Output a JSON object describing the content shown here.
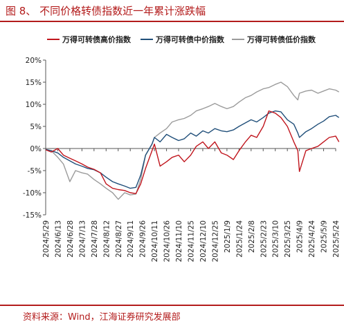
{
  "figure": {
    "title": "图 8、 不同价格转债指数近一年累计涨跌幅",
    "source": "资料来源：Wind，江海证券研究发展部"
  },
  "chart_data": {
    "type": "line",
    "title": "",
    "xlabel": "",
    "ylabel": "",
    "legend_position": "top",
    "grid": false,
    "ylim": [
      -15,
      20
    ],
    "yticks": [
      "20%",
      "15%",
      "10%",
      "5%",
      "0%",
      "-5%",
      "-10%",
      "-15%"
    ],
    "x_tick_labels": [
      "2024/5/29",
      "2024/6/13",
      "2024/6/28",
      "2024/7/13",
      "2024/7/28",
      "2024/8/12",
      "2024/8/27",
      "2024/9/11",
      "2024/9/26",
      "2024/10/11",
      "2024/10/26",
      "2024/11/10",
      "2024/11/25",
      "2024/12/10",
      "2024/12/25",
      "2025/1/9",
      "2025/1/24",
      "2025/2/8",
      "2025/2/23",
      "2025/3/10",
      "2025/3/25",
      "2025/4/9",
      "2025/4/24",
      "2025/5/9",
      "2025/5/24"
    ],
    "x": [
      "2024/5/29",
      "2024/6/5",
      "2024/6/13",
      "2024/6/20",
      "2024/6/28",
      "2024/7/5",
      "2024/7/13",
      "2024/7/20",
      "2024/7/28",
      "2024/8/5",
      "2024/8/12",
      "2024/8/20",
      "2024/8/27",
      "2024/9/4",
      "2024/9/11",
      "2024/9/18",
      "2024/9/24",
      "2024/9/30",
      "2024/10/8",
      "2024/10/11",
      "2024/10/18",
      "2024/10/26",
      "2024/11/2",
      "2024/11/10",
      "2024/11/17",
      "2024/11/25",
      "2024/12/2",
      "2024/12/10",
      "2024/12/17",
      "2024/12/25",
      "2025/1/2",
      "2025/1/9",
      "2025/1/17",
      "2025/1/24",
      "2025/2/1",
      "2025/2/8",
      "2025/2/15",
      "2025/2/23",
      "2025/3/2",
      "2025/3/10",
      "2025/3/17",
      "2025/3/25",
      "2025/4/2",
      "2025/4/7",
      "2025/4/9",
      "2025/4/17",
      "2025/4/24",
      "2025/5/2",
      "2025/5/9",
      "2025/5/16",
      "2025/5/24",
      "2025/5/28"
    ],
    "series": [
      {
        "name": "万得可转债高价指数",
        "color": "#c0141c",
        "values": [
          -0.3,
          -0.8,
          0,
          -1.5,
          -2.2,
          -2.8,
          -3.5,
          -4.2,
          -4.7,
          -5.5,
          -8,
          -9,
          -9.3,
          -9.5,
          -10,
          -10.2,
          -8,
          -4.5,
          -0.5,
          1,
          -4,
          -3,
          -2,
          -1.5,
          -3,
          -1.5,
          0.5,
          1.5,
          0,
          1.5,
          -1,
          -1.5,
          -2.5,
          -0.5,
          1.5,
          3,
          2.5,
          5,
          8.5,
          8,
          7,
          5,
          1.5,
          -0.5,
          -5.2,
          -0.5,
          0,
          0.5,
          1.5,
          2.5,
          2.8,
          1.5
        ]
      },
      {
        "name": "万得可转债中价指数",
        "color": "#1f4e79",
        "values": [
          -0.2,
          -0.5,
          -1,
          -2,
          -2.8,
          -3.5,
          -4,
          -4.5,
          -4.8,
          -5.5,
          -6.5,
          -7.5,
          -8,
          -8.5,
          -9,
          -8.8,
          -6,
          -1.5,
          1,
          2.5,
          1.5,
          3.2,
          2.5,
          1.8,
          2.2,
          3.5,
          2.8,
          4,
          3.5,
          4.5,
          4,
          3.8,
          4.2,
          5,
          5.8,
          6.5,
          6,
          7,
          8,
          8.5,
          8.3,
          6.5,
          5.5,
          3.5,
          2.5,
          3.8,
          4.5,
          5.5,
          6.2,
          7.2,
          7.5,
          7
        ]
      },
      {
        "name": "万得可转债低价指数",
        "color": "#9b9b9b",
        "values": [
          -0.2,
          -0.5,
          -2,
          -3.5,
          -7.5,
          -5,
          -5.5,
          -5.8,
          -7,
          -8,
          -9,
          -10,
          -11.5,
          -10,
          -10.5,
          -10.3,
          -7,
          -1.5,
          1,
          2.5,
          3.5,
          4.5,
          6,
          6.5,
          6.8,
          7.5,
          8.5,
          9,
          9.5,
          10.2,
          9.5,
          9,
          9.5,
          10.5,
          11.5,
          12,
          12.8,
          13.5,
          13.8,
          14.5,
          15,
          14,
          12,
          11,
          12.5,
          13,
          13.2,
          12.5,
          13,
          13.5,
          13.2,
          12.8
        ]
      }
    ]
  }
}
